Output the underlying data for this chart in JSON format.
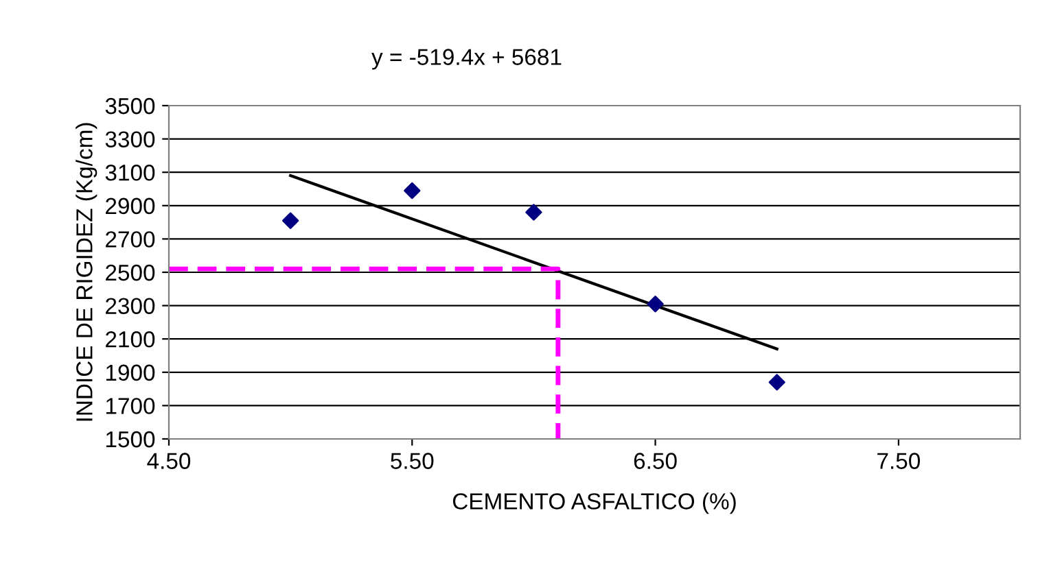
{
  "chart_data": {
    "type": "scatter",
    "xlabel": "CEMENTO ASFALTICO (%)",
    "ylabel": "INDICE DE RIGIDEZ (Kg/cm)",
    "annotations": [
      "y = -519.4x + 5681"
    ],
    "xlim": [
      4.5,
      8.0
    ],
    "xticks": [
      {
        "value": 4.5,
        "label": "4.50"
      },
      {
        "value": 5.5,
        "label": "5.50"
      },
      {
        "value": 6.5,
        "label": "6.50"
      },
      {
        "value": 7.5,
        "label": "7.50"
      }
    ],
    "ylim": [
      1500,
      3500
    ],
    "yticks": [
      1500,
      1700,
      1900,
      2100,
      2300,
      2500,
      2700,
      2900,
      3100,
      3300,
      3500
    ],
    "grid": "y",
    "legend": false,
    "series": [
      {
        "color": "#000080",
        "marker": "diamond",
        "x": [
          5.0,
          5.5,
          6.0,
          6.5,
          7.0
        ],
        "values": [
          2810,
          2990,
          2860,
          2310,
          1840
        ]
      },
      {
        "type": "line",
        "color": "#000000",
        "marker": "none",
        "line_style": "solid",
        "x": [
          5.0,
          7.0
        ],
        "values": [
          3080,
          2040
        ]
      },
      {
        "type": "line",
        "color": "#ff00ff",
        "marker": "none",
        "line_style": "dashed",
        "x": [
          4.5,
          6.1,
          6.1
        ],
        "values": [
          2520,
          2520,
          1500
        ]
      }
    ]
  }
}
